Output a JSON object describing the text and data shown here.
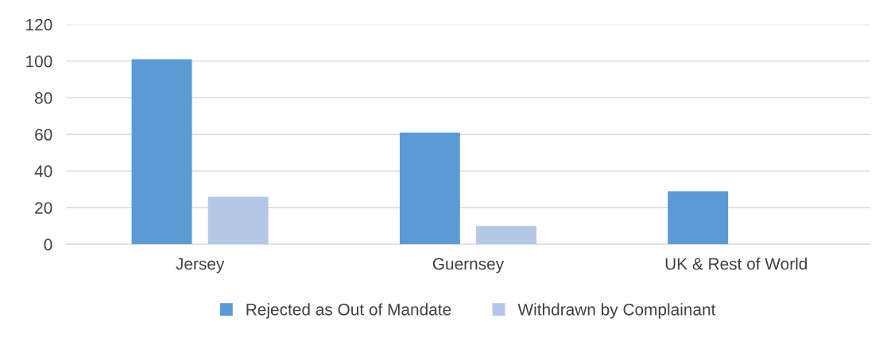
{
  "chart_data": {
    "type": "bar",
    "categories": [
      "Jersey",
      "Guernsey",
      "UK & Rest of World"
    ],
    "series": [
      {
        "name": "Rejected as Out of Mandate",
        "color": "#5b9bd5",
        "values": [
          101,
          61,
          29
        ]
      },
      {
        "name": "Withdrawn by Complainant",
        "color": "#b4c7e7",
        "values": [
          26,
          10,
          null
        ]
      }
    ],
    "ylim": [
      0,
      120
    ],
    "yticks": [
      0,
      20,
      40,
      60,
      80,
      100,
      120
    ],
    "grid": "y",
    "legend": "bottom"
  }
}
